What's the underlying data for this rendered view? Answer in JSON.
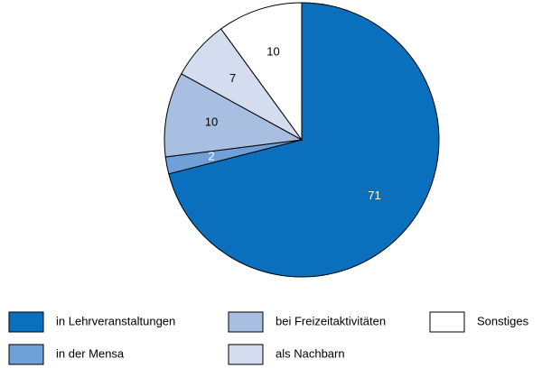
{
  "chart_data": {
    "type": "pie",
    "categories": [
      "in Lehrveranstaltungen",
      "in der Mensa",
      "bei Freizeitaktivitäten",
      "als Nachbarn",
      "Sonstiges"
    ],
    "values": [
      71,
      2,
      10,
      7,
      10
    ],
    "colors": [
      "#0a6fbd",
      "#6fa0d8",
      "#a9bfe2",
      "#d4ddf0",
      "#ffffff"
    ],
    "label_colors": [
      "#ffffff",
      "#ffffff",
      "#000000",
      "#000000",
      "#000000"
    ]
  }
}
